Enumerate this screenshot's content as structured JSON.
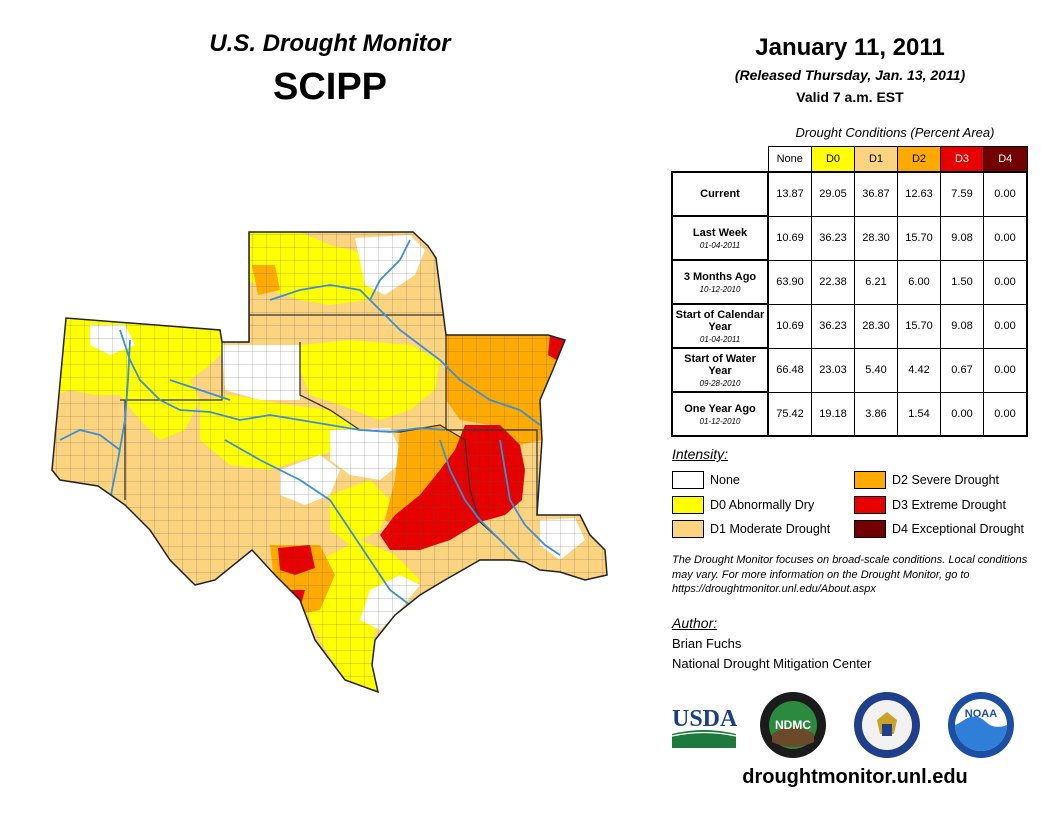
{
  "header": {
    "title": "U.S. Drought Monitor",
    "region": "SCIPP",
    "date": "January 11, 2011",
    "released": "(Released Thursday, Jan. 13, 2011)",
    "valid": "Valid 7 a.m. EST"
  },
  "table": {
    "caption": "Drought Conditions (Percent Area)",
    "columns": [
      "None",
      "D0",
      "D1",
      "D2",
      "D3",
      "D4"
    ],
    "rows": [
      {
        "label": "Current",
        "date": "",
        "values": [
          "13.87",
          "29.05",
          "36.87",
          "12.63",
          "7.59",
          "0.00"
        ]
      },
      {
        "label": "Last Week",
        "date": "01-04-2011",
        "values": [
          "10.69",
          "36.23",
          "28.30",
          "15.70",
          "9.08",
          "0.00"
        ]
      },
      {
        "label": "3 Months Ago",
        "date": "10-12-2010",
        "values": [
          "63.90",
          "22.38",
          "6.21",
          "6.00",
          "1.50",
          "0.00"
        ]
      },
      {
        "label": "Start of Calendar Year",
        "date": "01-04-2011",
        "values": [
          "10.69",
          "36.23",
          "28.30",
          "15.70",
          "9.08",
          "0.00"
        ]
      },
      {
        "label": "Start of Water Year",
        "date": "09-28-2010",
        "values": [
          "66.48",
          "23.03",
          "5.40",
          "4.42",
          "0.67",
          "0.00"
        ]
      },
      {
        "label": "One Year Ago",
        "date": "01-12-2010",
        "values": [
          "75.42",
          "19.18",
          "3.86",
          "1.54",
          "0.00",
          "0.00"
        ]
      }
    ]
  },
  "legend": {
    "title": "Intensity:",
    "items": [
      {
        "label": "None",
        "color": "#ffffff"
      },
      {
        "label": "D0 Abnormally Dry",
        "color": "#ffff00"
      },
      {
        "label": "D1 Moderate Drought",
        "color": "#fcd37f"
      },
      {
        "label": "D2 Severe Drought",
        "color": "#ffaa00"
      },
      {
        "label": "D3 Extreme Drought",
        "color": "#e60000"
      },
      {
        "label": "D4 Exceptional Drought",
        "color": "#730000"
      }
    ]
  },
  "note": "The Drought Monitor focuses on broad-scale conditions. Local conditions may vary. For more information on the Drought Monitor, go to https://droughtmonitor.unl.edu/About.aspx",
  "author": {
    "title": "Author:",
    "name": "Brian Fuchs",
    "org": "National Drought Mitigation Center"
  },
  "logos": {
    "usda": "USDA",
    "ndmc": "NDMC",
    "noaa": "NOAA"
  },
  "url": "droughtmonitor.unl.edu",
  "colors": {
    "none": "#ffffff",
    "d0": "#ffff00",
    "d1": "#fcd37f",
    "d2": "#ffaa00",
    "d3": "#e60000",
    "d4": "#730000",
    "river": "#3b8fd8"
  }
}
